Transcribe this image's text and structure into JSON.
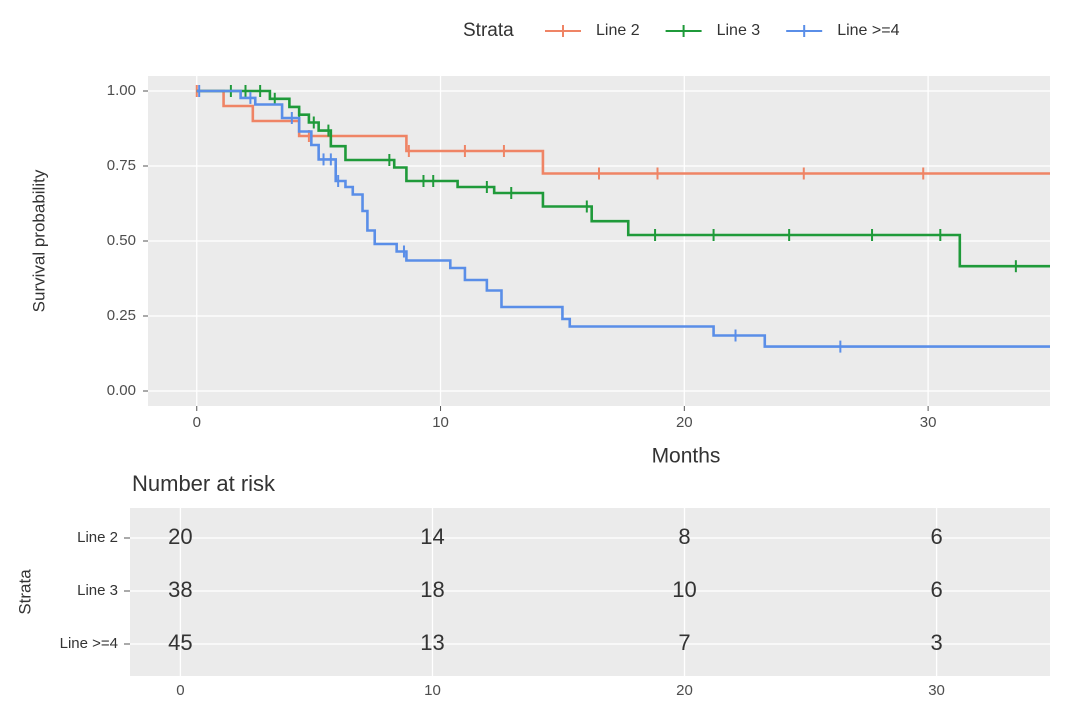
{
  "chart_data": {
    "type": "step",
    "legend_title": "Strata",
    "xlabel": "Months",
    "ylabel": "Survival probability",
    "xlim": [
      -2,
      35
    ],
    "ylim": [
      -0.05,
      1.05
    ],
    "xticks": [
      0,
      10,
      20,
      30
    ],
    "yticks": [
      {
        "value": 0,
        "label": "0.00"
      },
      {
        "value": 0.25,
        "label": "0.25"
      },
      {
        "value": 0.5,
        "label": "0.50"
      },
      {
        "value": 0.75,
        "label": "0.75"
      },
      {
        "value": 1,
        "label": "1.00"
      }
    ],
    "grid": true,
    "series": [
      {
        "name": "Line 2",
        "color": "#ef8465",
        "x": [
          0,
          1.1,
          2.3,
          4.2,
          8.6,
          14.2
        ],
        "values": [
          1,
          0.95,
          0.9,
          0.85,
          0.8,
          0.725
        ],
        "censor_x": [
          0,
          4.6,
          8.7,
          11.0,
          12.6,
          16.5,
          18.9,
          24.9,
          29.8
        ],
        "censor_values": [
          1,
          0.85,
          0.8,
          0.8,
          0.8,
          0.725,
          0.725,
          0.725,
          0.725
        ]
      },
      {
        "name": "Line 3",
        "color": "#1f9a3a",
        "x": [
          0,
          3.0,
          3.8,
          4.2,
          4.6,
          5.0,
          5.5,
          6.1,
          8.1,
          8.6,
          10.7,
          12.2,
          14.2,
          16.2,
          17.7,
          31.3
        ],
        "values": [
          1,
          0.974,
          0.947,
          0.921,
          0.895,
          0.868,
          0.816,
          0.77,
          0.745,
          0.7,
          0.68,
          0.66,
          0.615,
          0.566,
          0.52,
          0.416
        ],
        "censor_x": [
          1.4,
          2.0,
          2.6,
          3.2,
          4.2,
          4.8,
          5.4,
          7.9,
          9.3,
          9.7,
          11.9,
          12.9,
          16.0,
          18.8,
          21.2,
          24.3,
          27.7,
          30.5,
          33.6
        ],
        "censor_values": [
          1,
          1,
          1,
          0.974,
          0.921,
          0.895,
          0.868,
          0.77,
          0.7,
          0.7,
          0.68,
          0.66,
          0.615,
          0.52,
          0.52,
          0.52,
          0.52,
          0.52,
          0.416
        ]
      },
      {
        "name": "Line >=4",
        "color": "#5a8ee8",
        "x": [
          0,
          1.8,
          2.4,
          3.5,
          4.2,
          4.7,
          5.0,
          5.7,
          6.1,
          6.4,
          6.8,
          7.0,
          7.3,
          8.2,
          8.6,
          10.4,
          11.0,
          11.9,
          12.5,
          15.0,
          15.3,
          21.2,
          23.3
        ],
        "values": [
          1,
          0.977,
          0.955,
          0.91,
          0.865,
          0.82,
          0.772,
          0.7,
          0.68,
          0.655,
          0.6,
          0.535,
          0.49,
          0.465,
          0.435,
          0.41,
          0.37,
          0.335,
          0.28,
          0.24,
          0.215,
          0.185,
          0.148
        ],
        "censor_x": [
          0.1,
          2.2,
          3.9,
          5.2,
          5.5,
          5.8,
          8.5,
          22.1,
          26.4
        ],
        "censor_values": [
          1,
          0.977,
          0.91,
          0.772,
          0.772,
          0.7,
          0.465,
          0.185,
          0.148
        ]
      }
    ],
    "risk_table": {
      "title": "Number at risk",
      "ylabel": "Strata",
      "xlim": [
        -2,
        34.5
      ],
      "xticks": [
        0,
        10,
        20,
        30
      ],
      "x": [
        0,
        10,
        20,
        30
      ],
      "rows": [
        {
          "name": "Line 2",
          "color": "#ef8465",
          "values": [
            20,
            14,
            8,
            6
          ]
        },
        {
          "name": "Line 3",
          "color": "#1f9a3a",
          "values": [
            38,
            18,
            10,
            6
          ]
        },
        {
          "name": "Line >=4",
          "color": "#5a8ee8",
          "values": [
            45,
            13,
            7,
            3
          ]
        }
      ]
    }
  }
}
